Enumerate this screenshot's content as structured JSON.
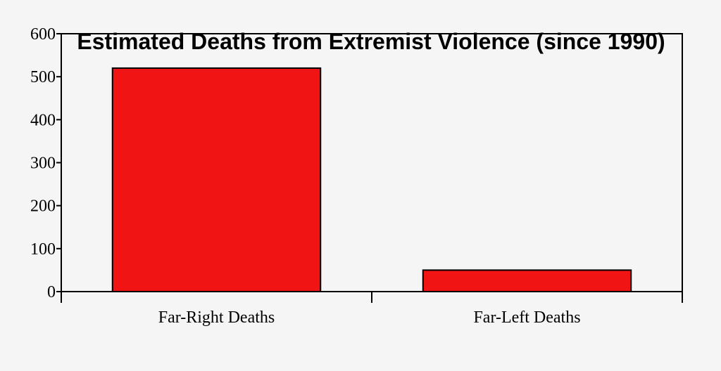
{
  "chart_data": {
    "type": "bar",
    "title": "Estimated Deaths from Extremist Violence (since 1990)",
    "categories": [
      "Far-Right Deaths",
      "Far-Left Deaths"
    ],
    "values": [
      520,
      50
    ],
    "ylim": [
      0,
      600
    ],
    "yticks": [
      0,
      100,
      200,
      300,
      400,
      500,
      600
    ],
    "xlabel": "",
    "ylabel": "",
    "bar_color": "#f01414",
    "bar_edge_color": "#000000",
    "background": "#f5f5f5",
    "grid": false,
    "legend": "none"
  }
}
